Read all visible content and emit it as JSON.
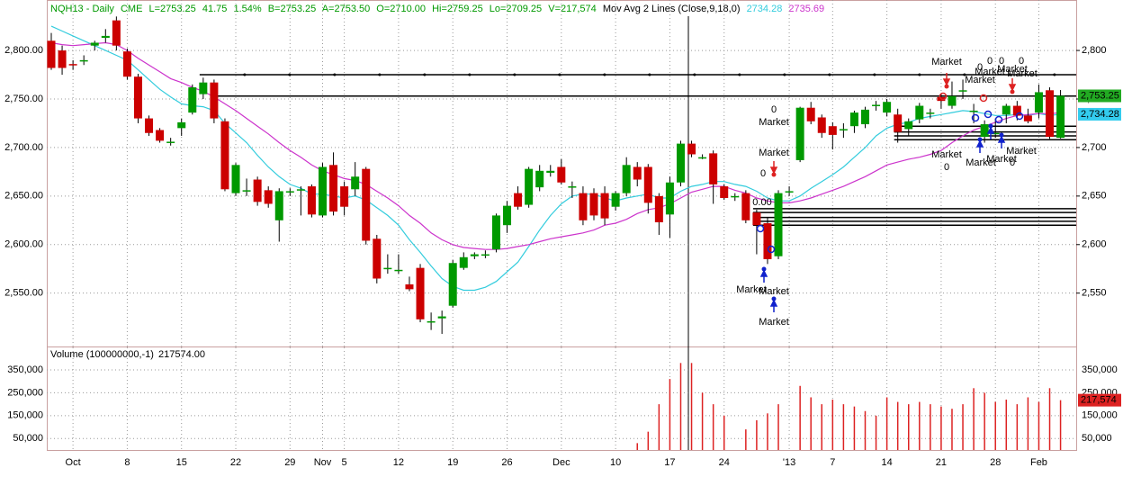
{
  "header": {
    "symbol": "NQH13 - Daily",
    "exchange": "CME",
    "last": "L=2753.25",
    "change": "41.75",
    "change_pct": "1.54%",
    "bid": "B=2753.25",
    "ask": "A=2753.50",
    "open": "O=2710.00",
    "high": "Hi=2759.25",
    "low": "Lo=2709.25",
    "volume": "V=217,574",
    "study": "Mov Avg 2 Lines (Close,9,18,0)",
    "ma1": "2734.28",
    "ma2": "2735.69"
  },
  "chart_data": [
    {
      "type": "candlestick",
      "up_color": "#009900",
      "down_color": "#cc0000",
      "categories": [
        null,
        null,
        "Oct",
        null,
        null,
        null,
        null,
        "8",
        null,
        null,
        null,
        null,
        "15",
        null,
        null,
        null,
        null,
        "22",
        null,
        null,
        null,
        null,
        "29",
        null,
        null,
        "Nov",
        null,
        "5",
        null,
        null,
        null,
        null,
        "12",
        null,
        null,
        null,
        null,
        "19",
        null,
        null,
        null,
        null,
        "26",
        null,
        null,
        null,
        null,
        "Dec",
        null,
        null,
        null,
        null,
        "10",
        null,
        null,
        null,
        null,
        "17",
        null,
        null,
        null,
        null,
        "24",
        null,
        null,
        null,
        null,
        null,
        "'13",
        null,
        null,
        null,
        "7",
        null,
        null,
        null,
        null,
        "14",
        null,
        null,
        null,
        null,
        "21",
        null,
        null,
        null,
        null,
        "28",
        null,
        null,
        null,
        "Feb",
        null,
        null
      ],
      "candles": [
        {
          "o": 2810,
          "h": 2818,
          "l": 2780,
          "c": 2782
        },
        {
          "o": 2800,
          "h": 2805,
          "l": 2775,
          "c": 2782
        },
        {
          "o": 2786,
          "h": 2790,
          "l": 2780,
          "c": 2785
        },
        {
          "o": 2790,
          "h": 2795,
          "l": 2785,
          "c": 2790
        },
        {
          "o": 2805,
          "h": 2810,
          "l": 2800,
          "c": 2808
        },
        {
          "o": 2813,
          "h": 2822,
          "l": 2808,
          "c": 2815
        },
        {
          "o": 2831,
          "h": 2835,
          "l": 2800,
          "c": 2805
        },
        {
          "o": 2799,
          "h": 2802,
          "l": 2770,
          "c": 2773
        },
        {
          "o": 2773,
          "h": 2776,
          "l": 2725,
          "c": 2730
        },
        {
          "o": 2730,
          "h": 2733,
          "l": 2712,
          "c": 2715
        },
        {
          "o": 2718,
          "h": 2720,
          "l": 2705,
          "c": 2707
        },
        {
          "o": 2706,
          "h": 2710,
          "l": 2702,
          "c": 2706
        },
        {
          "o": 2720,
          "h": 2730,
          "l": 2712,
          "c": 2726
        },
        {
          "o": 2736,
          "h": 2765,
          "l": 2734,
          "c": 2762
        },
        {
          "o": 2755,
          "h": 2772,
          "l": 2750,
          "c": 2767
        },
        {
          "o": 2767,
          "h": 2770,
          "l": 2725,
          "c": 2730
        },
        {
          "o": 2727,
          "h": 2730,
          "l": 2655,
          "c": 2657
        },
        {
          "o": 2653,
          "h": 2684,
          "l": 2650,
          "c": 2682
        },
        {
          "o": 2656,
          "h": 2668,
          "l": 2650,
          "c": 2656
        },
        {
          "o": 2667,
          "h": 2670,
          "l": 2640,
          "c": 2644
        },
        {
          "o": 2656,
          "h": 2660,
          "l": 2638,
          "c": 2642
        },
        {
          "o": 2625,
          "h": 2658,
          "l": 2603,
          "c": 2655
        },
        {
          "o": 2655,
          "h": 2658,
          "l": 2650,
          "c": 2655
        },
        {
          "o": 2657,
          "h": 2660,
          "l": 2630,
          "c": 2657
        },
        {
          "o": 2660,
          "h": 2662,
          "l": 2628,
          "c": 2631
        },
        {
          "o": 2630,
          "h": 2684,
          "l": 2628,
          "c": 2680
        },
        {
          "o": 2682,
          "h": 2695,
          "l": 2630,
          "c": 2634
        },
        {
          "o": 2660,
          "h": 2665,
          "l": 2630,
          "c": 2639
        },
        {
          "o": 2657,
          "h": 2685,
          "l": 2650,
          "c": 2670
        },
        {
          "o": 2678,
          "h": 2680,
          "l": 2600,
          "c": 2604
        },
        {
          "o": 2606,
          "h": 2610,
          "l": 2560,
          "c": 2565
        },
        {
          "o": 2576,
          "h": 2590,
          "l": 2570,
          "c": 2576
        },
        {
          "o": 2574,
          "h": 2590,
          "l": 2570,
          "c": 2574
        },
        {
          "o": 2559,
          "h": 2567,
          "l": 2552,
          "c": 2554
        },
        {
          "o": 2576,
          "h": 2580,
          "l": 2520,
          "c": 2523
        },
        {
          "o": 2521,
          "h": 2530,
          "l": 2512,
          "c": 2521
        },
        {
          "o": 2524,
          "h": 2532,
          "l": 2508,
          "c": 2526
        },
        {
          "o": 2537,
          "h": 2584,
          "l": 2535,
          "c": 2581
        },
        {
          "o": 2576,
          "h": 2592,
          "l": 2574,
          "c": 2587
        },
        {
          "o": 2588,
          "h": 2592,
          "l": 2585,
          "c": 2590
        },
        {
          "o": 2590,
          "h": 2594,
          "l": 2586,
          "c": 2590
        },
        {
          "o": 2595,
          "h": 2632,
          "l": 2592,
          "c": 2630
        },
        {
          "o": 2620,
          "h": 2645,
          "l": 2612,
          "c": 2640
        },
        {
          "o": 2653,
          "h": 2660,
          "l": 2636,
          "c": 2639
        },
        {
          "o": 2641,
          "h": 2680,
          "l": 2638,
          "c": 2678
        },
        {
          "o": 2659,
          "h": 2682,
          "l": 2655,
          "c": 2676
        },
        {
          "o": 2674,
          "h": 2682,
          "l": 2670,
          "c": 2676
        },
        {
          "o": 2680,
          "h": 2688,
          "l": 2662,
          "c": 2664
        },
        {
          "o": 2660,
          "h": 2665,
          "l": 2648,
          "c": 2660
        },
        {
          "o": 2653,
          "h": 2660,
          "l": 2620,
          "c": 2625
        },
        {
          "o": 2653,
          "h": 2658,
          "l": 2625,
          "c": 2630
        },
        {
          "o": 2653,
          "h": 2660,
          "l": 2620,
          "c": 2627
        },
        {
          "o": 2639,
          "h": 2655,
          "l": 2635,
          "c": 2653
        },
        {
          "o": 2653,
          "h": 2690,
          "l": 2650,
          "c": 2682
        },
        {
          "o": 2680,
          "h": 2685,
          "l": 2660,
          "c": 2667
        },
        {
          "o": 2680,
          "h": 2683,
          "l": 2632,
          "c": 2643
        },
        {
          "o": 2650,
          "h": 2653,
          "l": 2610,
          "c": 2623
        },
        {
          "o": 2631,
          "h": 2670,
          "l": 2607,
          "c": 2664
        },
        {
          "o": 2664,
          "h": 2707,
          "l": 2660,
          "c": 2704
        },
        {
          "o": 2704,
          "h": 2707,
          "l": 2690,
          "c": 2693
        },
        {
          "o": 2690,
          "h": 2693,
          "l": 2688,
          "c": 2690
        },
        {
          "o": 2694,
          "h": 2697,
          "l": 2642,
          "c": 2662
        },
        {
          "o": 2660,
          "h": 2662,
          "l": 2646,
          "c": 2648
        },
        {
          "o": 2650,
          "h": 2653,
          "l": 2645,
          "c": 2650
        },
        {
          "o": 2653,
          "h": 2656,
          "l": 2622,
          "c": 2625
        },
        {
          "o": 2633,
          "h": 2636,
          "l": 2590,
          "c": 2620
        },
        {
          "o": 2622,
          "h": 2628,
          "l": 2580,
          "c": 2585
        },
        {
          "o": 2588,
          "h": 2656,
          "l": 2585,
          "c": 2653
        },
        {
          "o": 2655,
          "h": 2660,
          "l": 2650,
          "c": 2655
        },
        {
          "o": 2687,
          "h": 2742,
          "l": 2685,
          "c": 2741
        },
        {
          "o": 2741,
          "h": 2747,
          "l": 2724,
          "c": 2727
        },
        {
          "o": 2731,
          "h": 2734,
          "l": 2710,
          "c": 2715
        },
        {
          "o": 2722,
          "h": 2726,
          "l": 2698,
          "c": 2713
        },
        {
          "o": 2719,
          "h": 2725,
          "l": 2710,
          "c": 2719
        },
        {
          "o": 2722,
          "h": 2738,
          "l": 2715,
          "c": 2736
        },
        {
          "o": 2724,
          "h": 2742,
          "l": 2720,
          "c": 2739
        },
        {
          "o": 2744,
          "h": 2748,
          "l": 2738,
          "c": 2744
        },
        {
          "o": 2736,
          "h": 2750,
          "l": 2732,
          "c": 2747
        },
        {
          "o": 2734,
          "h": 2740,
          "l": 2705,
          "c": 2716
        },
        {
          "o": 2719,
          "h": 2730,
          "l": 2712,
          "c": 2727
        },
        {
          "o": 2729,
          "h": 2746,
          "l": 2725,
          "c": 2743
        },
        {
          "o": 2736,
          "h": 2740,
          "l": 2730,
          "c": 2736
        },
        {
          "o": 2752,
          "h": 2756,
          "l": 2740,
          "c": 2748
        },
        {
          "o": 2743,
          "h": 2768,
          "l": 2740,
          "c": 2753
        },
        {
          "o": 2759,
          "h": 2770,
          "l": 2750,
          "c": 2759
        },
        {
          "o": 2738,
          "h": 2745,
          "l": 2725,
          "c": 2738
        },
        {
          "o": 2711,
          "h": 2728,
          "l": 2705,
          "c": 2724
        },
        {
          "o": 2715,
          "h": 2730,
          "l": 2710,
          "c": 2715
        },
        {
          "o": 2734,
          "h": 2745,
          "l": 2725,
          "c": 2743
        },
        {
          "o": 2743,
          "h": 2748,
          "l": 2728,
          "c": 2733
        },
        {
          "o": 2733,
          "h": 2740,
          "l": 2725,
          "c": 2727
        },
        {
          "o": 2736,
          "h": 2765,
          "l": 2730,
          "c": 2757
        },
        {
          "o": 2759,
          "h": 2762,
          "l": 2709,
          "c": 2711
        },
        {
          "o": 2710,
          "h": 2759.25,
          "l": 2709.25,
          "c": 2753.25
        }
      ],
      "lines": [
        {
          "color": "#33ccdd",
          "values": [
            2825,
            2820,
            2815,
            2810,
            2805,
            2800,
            2795,
            2790,
            2780,
            2770,
            2760,
            2752,
            2745,
            2743,
            2742,
            2738,
            2725,
            2715,
            2705,
            2692,
            2680,
            2670,
            2662,
            2658,
            2652,
            2652,
            2650,
            2648,
            2650,
            2646,
            2638,
            2630,
            2620,
            2605,
            2592,
            2578,
            2565,
            2557,
            2553,
            2553,
            2556,
            2562,
            2572,
            2582,
            2598,
            2615,
            2630,
            2642,
            2650,
            2652,
            2652,
            2648,
            2645,
            2648,
            2650,
            2652,
            2648,
            2648,
            2655,
            2660,
            2662,
            2665,
            2665,
            2662,
            2660,
            2655,
            2648,
            2645,
            2645,
            2650,
            2658,
            2665,
            2672,
            2680,
            2690,
            2700,
            2712,
            2720,
            2724,
            2726,
            2730,
            2732,
            2734,
            2736,
            2738,
            2737,
            2735,
            2733,
            2733,
            2734,
            2733,
            2735,
            2733,
            2734.28
          ]
        },
        {
          "color": "#cc33cc",
          "values": [
            2808,
            2806,
            2805,
            2806,
            2807,
            2808,
            2806,
            2800,
            2792,
            2785,
            2778,
            2771,
            2767,
            2762,
            2758,
            2752,
            2745,
            2738,
            2730,
            2722,
            2714,
            2705,
            2697,
            2690,
            2682,
            2676,
            2672,
            2668,
            2666,
            2662,
            2655,
            2648,
            2640,
            2630,
            2622,
            2612,
            2605,
            2600,
            2597,
            2596,
            2595,
            2595,
            2596,
            2598,
            2600,
            2603,
            2606,
            2608,
            2610,
            2612,
            2615,
            2620,
            2622,
            2626,
            2632,
            2636,
            2638,
            2642,
            2648,
            2654,
            2657,
            2660,
            2660,
            2656,
            2653,
            2648,
            2645,
            2643,
            2643,
            2645,
            2648,
            2652,
            2656,
            2660,
            2665,
            2670,
            2676,
            2682,
            2685,
            2688,
            2690,
            2693,
            2697,
            2705,
            2712,
            2718,
            2722,
            2726,
            2730,
            2733,
            2734,
            2735,
            2735,
            2735.69
          ]
        }
      ],
      "ylim": [
        2495,
        2852
      ],
      "yticks": [
        {
          "value": 2550,
          "label": "2,550.00"
        },
        {
          "value": 2600,
          "label": "2,600.00"
        },
        {
          "value": 2650,
          "label": "2,650.00"
        },
        {
          "value": 2700,
          "label": "2,700.00"
        },
        {
          "value": 2750,
          "label": "2,750.00"
        },
        {
          "value": 2800,
          "label": "2,800.00"
        }
      ],
      "y2lim": [
        2495,
        2852
      ],
      "y2ticks": [
        {
          "value": 2550,
          "label": "2,550"
        },
        {
          "value": 2600,
          "label": "2,600"
        },
        {
          "value": 2650,
          "label": "2,650"
        },
        {
          "value": 2700,
          "label": "2,700"
        },
        {
          "value": 2750,
          "label": "2,750"
        },
        {
          "value": 2800,
          "label": "2,800"
        }
      ],
      "grid": true,
      "levels": [
        2775,
        2753,
        2722,
        2716,
        2712,
        2708,
        2637,
        2633,
        2628,
        2624,
        2620
      ],
      "annotations": [
        "Market",
        "0",
        "0",
        "0",
        "0",
        "Market",
        "Market",
        "Market",
        "Market",
        "0",
        "Market",
        "Market",
        "0",
        "0.00",
        "Market",
        "0",
        "Market",
        "Market",
        "0",
        "Market",
        "Market",
        "Market",
        "Market"
      ],
      "badges": [
        {
          "value": 2753.25,
          "label": "2,753.25",
          "color": "#22aa22"
        },
        {
          "value": 2734.28,
          "label": "2,734.28",
          "color": "#33ccee"
        }
      ]
    },
    {
      "type": "bar",
      "title": "Volume (100000000,-1)",
      "last_label": "217574.00",
      "color": "#dd2222",
      "values": [
        null,
        null,
        null,
        null,
        null,
        null,
        null,
        null,
        null,
        null,
        null,
        null,
        null,
        null,
        null,
        null,
        null,
        null,
        null,
        null,
        null,
        null,
        null,
        null,
        null,
        null,
        null,
        null,
        null,
        null,
        null,
        null,
        null,
        null,
        null,
        null,
        null,
        null,
        null,
        null,
        null,
        null,
        null,
        null,
        null,
        null,
        null,
        null,
        null,
        null,
        null,
        null,
        null,
        null,
        30000,
        80000,
        200000,
        310000,
        380000,
        380000,
        250000,
        200000,
        150000,
        null,
        90000,
        130000,
        160000,
        200000,
        null,
        280000,
        230000,
        200000,
        220000,
        200000,
        190000,
        170000,
        150000,
        230000,
        210000,
        200000,
        210000,
        200000,
        190000,
        180000,
        200000,
        270000,
        250000,
        210000,
        220000,
        200000,
        230000,
        210000,
        270000,
        217574
      ],
      "ylim": [
        0,
        452000
      ],
      "yticks": [
        {
          "value": 50000,
          "label": "50,000"
        },
        {
          "value": 150000,
          "label": "150,000"
        },
        {
          "value": 250000,
          "label": "250,000"
        },
        {
          "value": 350000,
          "label": "350,000"
        }
      ],
      "badge": {
        "value": 217574,
        "label": "217,574",
        "color": "#dd2222"
      }
    }
  ]
}
